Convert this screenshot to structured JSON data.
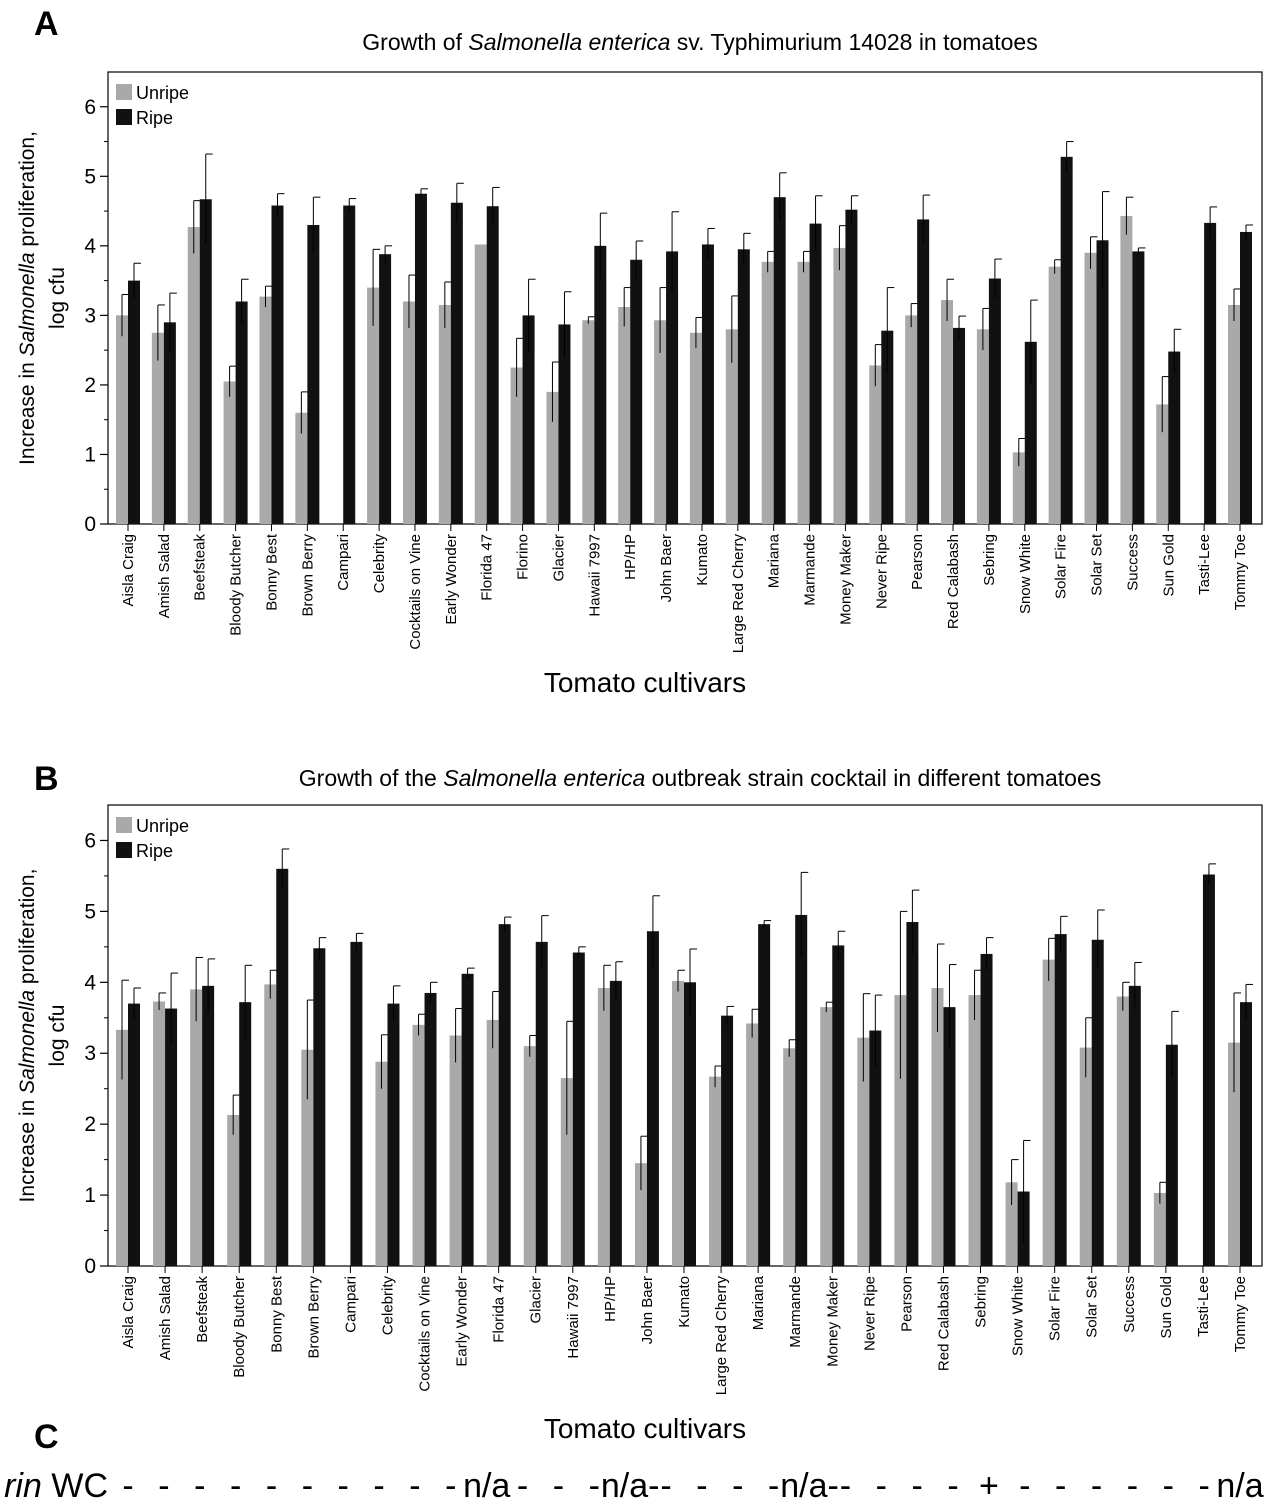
{
  "panels": {
    "a": {
      "letter": "A"
    },
    "b": {
      "letter": "B"
    },
    "c": {
      "letter": "C"
    }
  },
  "chart_data": [
    {
      "id": "A",
      "type": "bar",
      "title_prefix": "Growth of ",
      "title_italic": "Salmonella enterica",
      "title_suffix": " sv. Typhimurium 14028 in tomatoes",
      "ylabel_line1_prefix": "Increase in ",
      "ylabel_line1_italic": "Salmonella",
      "ylabel_line1_suffix": " proliferation,",
      "ylabel_line2": "log cfu",
      "xlabel": "Tomato cultivars",
      "ylim": [
        0,
        6.5
      ],
      "yticks": [
        "0",
        "1",
        "2",
        "3",
        "4",
        "5",
        "6"
      ],
      "legend": [
        "Unripe",
        "Ripe"
      ],
      "legend_position": "top-left",
      "colors": {
        "Unripe": "#a9a9a9",
        "Ripe": "#111111"
      },
      "categories": [
        "Aisla Craig",
        "Amish Salad",
        "Beefsteak",
        "Bloody Butcher",
        "Bonny Best",
        "Brown Berry",
        "Campari",
        "Celebrity",
        "Cocktails on Vine",
        "Early Wonder",
        "Florida 47",
        "Florino",
        "Glacier",
        "Hawaii 7997",
        "HP/HP",
        "John Baer",
        "Kumato",
        "Large Red Cherry",
        "Mariana",
        "Marmande",
        "Money Maker",
        "Never Ripe",
        "Pearson",
        "Red Calabash",
        "Sebring",
        "Snow White",
        "Solar Fire",
        "Solar Set",
        "Success",
        "Sun Gold",
        "Tasti-Lee",
        "Tommy Toe"
      ],
      "series": [
        {
          "name": "Unripe",
          "values": [
            3.0,
            2.75,
            4.27,
            2.05,
            3.27,
            1.6,
            null,
            3.4,
            3.2,
            3.15,
            4.02,
            2.25,
            1.9,
            2.93,
            3.12,
            2.93,
            2.75,
            2.8,
            3.77,
            3.77,
            3.97,
            2.28,
            3.0,
            3.22,
            2.8,
            1.03,
            3.7,
            3.9,
            4.43,
            1.72,
            null,
            3.15
          ],
          "errors": [
            0.3,
            0.4,
            0.38,
            0.22,
            0.15,
            0.3,
            null,
            0.55,
            0.38,
            0.33,
            0.0,
            0.42,
            0.43,
            0.05,
            0.28,
            0.47,
            0.22,
            0.48,
            0.15,
            0.15,
            0.32,
            0.3,
            0.17,
            0.3,
            0.3,
            0.2,
            0.1,
            0.23,
            0.27,
            0.4,
            null,
            0.23
          ]
        },
        {
          "name": "Ripe",
          "values": [
            3.5,
            2.9,
            4.67,
            3.2,
            4.58,
            4.3,
            4.58,
            3.88,
            4.75,
            4.62,
            4.57,
            3.0,
            2.87,
            4.0,
            3.8,
            3.92,
            4.02,
            3.95,
            4.7,
            4.32,
            4.52,
            2.78,
            4.38,
            2.82,
            3.53,
            2.62,
            5.28,
            4.08,
            3.92,
            2.48,
            4.33,
            4.2
          ],
          "errors": [
            0.25,
            0.42,
            0.65,
            0.32,
            0.17,
            0.4,
            0.1,
            0.12,
            0.07,
            0.28,
            0.27,
            0.52,
            0.47,
            0.47,
            0.27,
            0.57,
            0.23,
            0.23,
            0.35,
            0.4,
            0.2,
            0.62,
            0.35,
            0.17,
            0.28,
            0.6,
            0.22,
            0.7,
            0.05,
            0.32,
            0.23,
            0.1
          ]
        }
      ]
    },
    {
      "id": "B",
      "type": "bar",
      "title_prefix": "Growth of the ",
      "title_italic": "Salmonella enterica",
      "title_suffix": " outbreak strain cocktail in different tomatoes",
      "ylabel_line1_prefix": "Increase in ",
      "ylabel_line1_italic": "Salmonella",
      "ylabel_line1_suffix": " proliferation,",
      "ylabel_line2": "log cfu",
      "xlabel": "Tomato cultivars",
      "ylim": [
        0,
        6.5
      ],
      "yticks": [
        "0",
        "1",
        "2",
        "3",
        "4",
        "5",
        "6"
      ],
      "legend": [
        "Unripe",
        "Ripe"
      ],
      "legend_position": "top-left",
      "colors": {
        "Unripe": "#a9a9a9",
        "Ripe": "#111111"
      },
      "categories": [
        "Aisla Craig",
        "Amish Salad",
        "Beefsteak",
        "Bloody Butcher",
        "Bonny Best",
        "Brown Berry",
        "Campari",
        "Celebrity",
        "Cocktails on Vine",
        "Early Wonder",
        "Florida 47",
        "Glacier",
        "Hawaii 7997",
        "HP/HP",
        "John Baer",
        "Kumato",
        "Large Red Cherry",
        "Mariana",
        "Marmande",
        "Money Maker",
        "Never Ripe",
        "Pearson",
        "Red Calabash",
        "Sebring",
        "Snow White",
        "Solar Fire",
        "Solar Set",
        "Success",
        "Sun Gold",
        "Tasti-Lee",
        "Tommy Toe"
      ],
      "series": [
        {
          "name": "Unripe",
          "values": [
            3.33,
            3.73,
            3.9,
            2.13,
            3.97,
            3.05,
            null,
            2.88,
            3.4,
            3.25,
            3.47,
            3.1,
            2.65,
            3.92,
            1.45,
            4.02,
            2.67,
            3.42,
            3.07,
            3.65,
            3.22,
            3.82,
            3.92,
            3.82,
            1.18,
            4.32,
            3.08,
            3.8,
            1.03,
            null,
            3.15
          ],
          "errors": [
            0.7,
            0.12,
            0.45,
            0.28,
            0.2,
            0.7,
            null,
            0.38,
            0.15,
            0.38,
            0.4,
            0.15,
            0.8,
            0.32,
            0.38,
            0.15,
            0.15,
            0.2,
            0.12,
            0.07,
            0.62,
            1.18,
            0.62,
            0.35,
            0.32,
            0.3,
            0.42,
            0.2,
            0.15,
            null,
            0.7
          ]
        },
        {
          "name": "Ripe",
          "values": [
            3.7,
            3.63,
            3.95,
            3.72,
            5.6,
            4.48,
            4.57,
            3.7,
            3.85,
            4.12,
            4.82,
            4.57,
            4.42,
            4.02,
            4.72,
            4.0,
            3.53,
            4.82,
            4.95,
            4.52,
            3.32,
            4.85,
            3.65,
            4.4,
            1.05,
            4.68,
            4.6,
            3.95,
            3.12,
            5.52,
            3.72
          ],
          "errors": [
            0.22,
            0.5,
            0.38,
            0.52,
            0.28,
            0.15,
            0.12,
            0.25,
            0.15,
            0.08,
            0.1,
            0.37,
            0.08,
            0.27,
            0.5,
            0.47,
            0.13,
            0.05,
            0.6,
            0.2,
            0.5,
            0.45,
            0.6,
            0.23,
            0.72,
            0.25,
            0.42,
            0.33,
            0.47,
            0.15,
            0.25
          ]
        }
      ]
    }
  ],
  "row_c": {
    "label_italic": "rin",
    "label_suffix": " WC",
    "marks": [
      "-",
      "-",
      "-",
      "-",
      "-",
      "-",
      "-",
      "-",
      "-",
      "-",
      "n/a",
      "-",
      "-",
      "-",
      "n/a-",
      "-",
      "-",
      "-",
      "-",
      "n/a-",
      "-",
      "-",
      "-",
      "-",
      "+",
      "-",
      "-",
      "-",
      "-",
      "-",
      "-",
      "n/a"
    ]
  }
}
